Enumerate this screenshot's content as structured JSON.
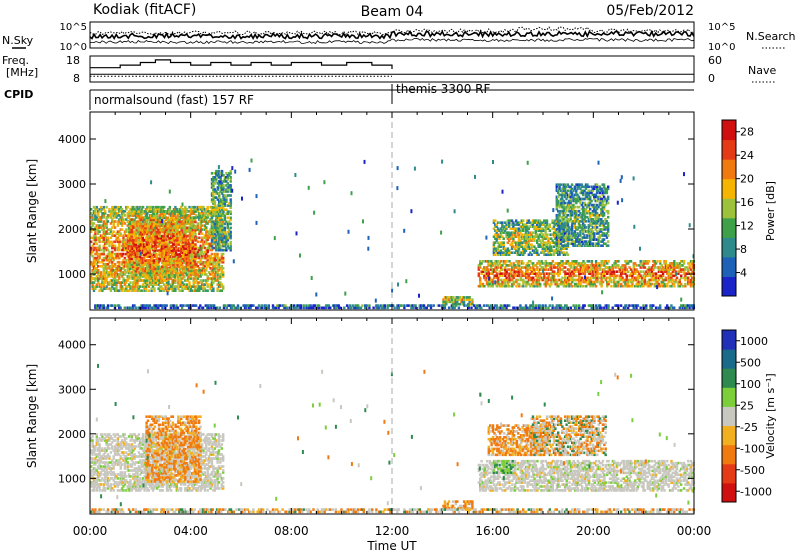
{
  "header": {
    "station": "Kodiak (fitACF)",
    "beam": "Beam 04",
    "date": "05/Feb/2012"
  },
  "noise_panel": {
    "left_label": "N.Sky",
    "right_label": "N.Search",
    "left_ticks": [
      "10^5",
      "10^0"
    ],
    "right_ticks": [
      "10^5",
      "10^0"
    ]
  },
  "freq_panel": {
    "left_label_1": "Freq.",
    "left_label_2": "[MHz]",
    "left_ticks": [
      "18",
      "8"
    ],
    "right_label": "Nave",
    "right_ticks": [
      "60",
      "0"
    ],
    "freq_steps": [
      {
        "t": 0.0,
        "f": 13.5
      },
      {
        "t": 1.2,
        "f": 14.5
      },
      {
        "t": 2.0,
        "f": 15.5
      },
      {
        "t": 2.6,
        "f": 16.5
      },
      {
        "t": 3.2,
        "f": 15.5
      },
      {
        "t": 4.0,
        "f": 14.5
      },
      {
        "t": 4.8,
        "f": 15.5
      },
      {
        "t": 5.6,
        "f": 14.5
      },
      {
        "t": 6.4,
        "f": 15.5
      },
      {
        "t": 7.2,
        "f": 14.5
      },
      {
        "t": 8.0,
        "f": 15.5
      },
      {
        "t": 9.2,
        "f": 14.5
      },
      {
        "t": 10.2,
        "f": 15.5
      },
      {
        "t": 11.2,
        "f": 14.5
      },
      {
        "t": 12.0,
        "f": 13.0
      }
    ]
  },
  "cpid": {
    "label": "CPID",
    "program_1": "normalsound (fast) 157 RF",
    "program_2": "themis 3300 RF",
    "switch_time_hours": 12.0
  },
  "time_axis": {
    "title": "Time UT",
    "ticks": [
      "00:00",
      "04:00",
      "08:00",
      "12:00",
      "16:00",
      "20:00",
      "00:00"
    ],
    "range_hours": [
      0,
      24
    ]
  },
  "chart_data": [
    {
      "type": "heatmap",
      "title": "",
      "xlabel": "Time UT",
      "ylabel": "Slant Range [km]",
      "ylim": [
        200,
        4600
      ],
      "y_ticks": [
        "1000",
        "2000",
        "3000",
        "4000"
      ],
      "y_tick_values": [
        1000,
        2000,
        3000,
        4000
      ],
      "colorbar_label": "Power [dB]",
      "colorbar_ticks": [
        "4",
        "8",
        "12",
        "16",
        "20",
        "24",
        "28"
      ],
      "colorbar_range": [
        0,
        30
      ],
      "colorscale": [
        "#1a24c8",
        "#1e62b8",
        "#2f8a8c",
        "#3fa04a",
        "#9cc23c",
        "#f4b400",
        "#f07a10",
        "#e53a16",
        "#d01010"
      ],
      "regions": [
        {
          "t0": 0.0,
          "t1": 5.3,
          "r0": 600,
          "r1": 2500,
          "peak": 0.72
        },
        {
          "t0": 1.5,
          "t1": 4.2,
          "r0": 900,
          "r1": 2400,
          "peak": 0.82
        },
        {
          "t0": 4.8,
          "t1": 5.6,
          "r0": 1500,
          "r1": 3300,
          "peak": 0.45
        },
        {
          "t0": 15.4,
          "t1": 24.0,
          "r0": 700,
          "r1": 1300,
          "peak": 0.78
        },
        {
          "t0": 16.0,
          "t1": 19.0,
          "r0": 1400,
          "r1": 2200,
          "peak": 0.55
        },
        {
          "t0": 18.5,
          "t1": 20.6,
          "r0": 1600,
          "r1": 3000,
          "peak": 0.4
        },
        {
          "t0": 14.0,
          "t1": 15.2,
          "r0": 300,
          "r1": 500,
          "peak": 0.6
        },
        {
          "t0": 0.0,
          "t1": 24.0,
          "r0": 220,
          "r1": 320,
          "peak": 0.25
        }
      ]
    },
    {
      "type": "heatmap",
      "title": "",
      "xlabel": "Time UT",
      "ylabel": "Slant Range [km]",
      "ylim": [
        200,
        4600
      ],
      "y_ticks": [
        "1000",
        "2000",
        "3000",
        "4000"
      ],
      "y_tick_values": [
        1000,
        2000,
        3000,
        4000
      ],
      "colorbar_label": "Velocity [m s⁻¹]",
      "colorbar_ticks": [
        "1000",
        "500",
        "100",
        "25",
        "-25",
        "-100",
        "-500",
        "-1000"
      ],
      "colorscale": [
        "#2030b8",
        "#1a6a8a",
        "#2f8a50",
        "#7ccf3a",
        "#c8c8c0",
        "#f2b020",
        "#f07a10",
        "#e53a16",
        "#d01010"
      ],
      "regions": [
        {
          "t0": 0.0,
          "t1": 5.3,
          "r0": 700,
          "r1": 2000,
          "class": "gray"
        },
        {
          "t0": 2.2,
          "t1": 4.4,
          "r0": 900,
          "r1": 2400,
          "class": "orange"
        },
        {
          "t0": 15.4,
          "t1": 24.0,
          "r0": 700,
          "r1": 1400,
          "class": "gray"
        },
        {
          "t0": 15.8,
          "t1": 18.2,
          "r0": 1500,
          "r1": 2200,
          "class": "orange"
        },
        {
          "t0": 17.5,
          "t1": 20.5,
          "r0": 1500,
          "r1": 2400,
          "class": "mixed"
        },
        {
          "t0": 16.0,
          "t1": 16.8,
          "r0": 1100,
          "r1": 1400,
          "class": "green"
        },
        {
          "t0": 14.0,
          "t1": 15.2,
          "r0": 300,
          "r1": 500,
          "class": "orange"
        },
        {
          "t0": 0.0,
          "t1": 24.0,
          "r0": 220,
          "r1": 320,
          "class": "mixed"
        }
      ]
    }
  ]
}
